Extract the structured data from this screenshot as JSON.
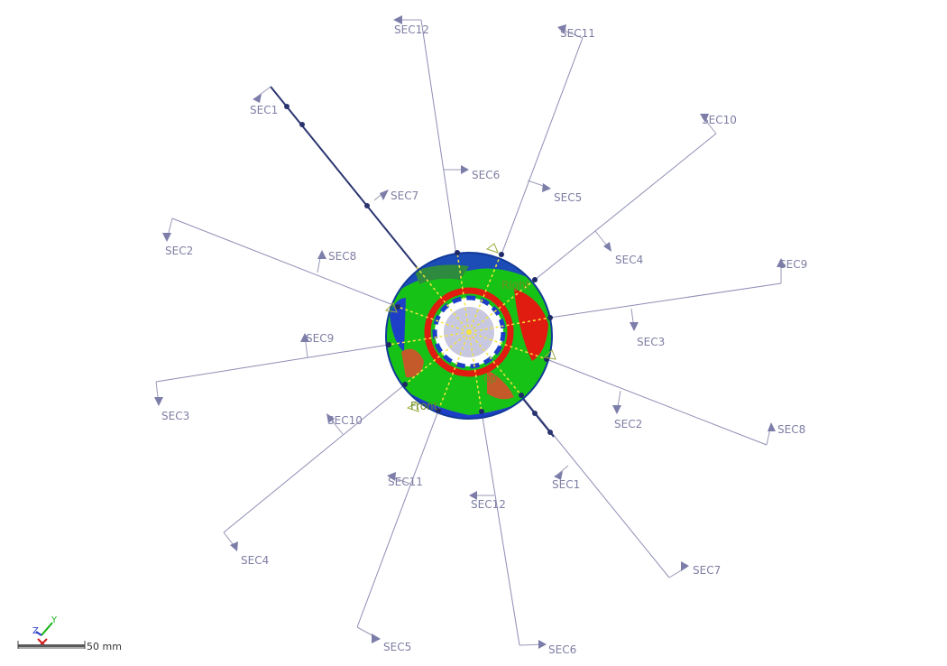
{
  "section_labels": {
    "sec1_a": "SEC1",
    "sec1_b": "SEC1",
    "sec2_a": "SEC2",
    "sec2_b": "SEC2",
    "sec3_a": "SEC3",
    "sec3_b": "SEC3",
    "sec4_a": "SEC4",
    "sec4_b": "SEC4",
    "sec5_a": "SEC5",
    "sec5_b": "SEC5",
    "sec6_a": "SEC6",
    "sec6_b": "SEC6",
    "sec7_a": "SEC7",
    "sec7_b": "SEC7",
    "sec8_a": "SEC8",
    "sec8_b": "SEC8",
    "sec9_a": "SEC9",
    "sec9_b": "SEC9",
    "sec10_a": "SEC10",
    "sec10_b": "SEC10",
    "sec11_a": "SEC11",
    "sec11_b": "SEC11",
    "sec12_a": "SEC12",
    "sec12_b": "SEC12"
  },
  "view_labels": {
    "front": "Front",
    "top": "op",
    "right": "Right"
  },
  "triad": {
    "y_axis": "Y",
    "z_axis": "Z"
  },
  "scale_bar": {
    "label": "50 mm"
  },
  "colors": {
    "plane_line": "#8d8db5",
    "selected_plane": "#2a3570",
    "contour_green": "#17c217",
    "contour_blue": "#1d3fc7",
    "contour_red": "#e01b10",
    "label": "#7e7ea4",
    "view_label": "#6e8c23"
  }
}
